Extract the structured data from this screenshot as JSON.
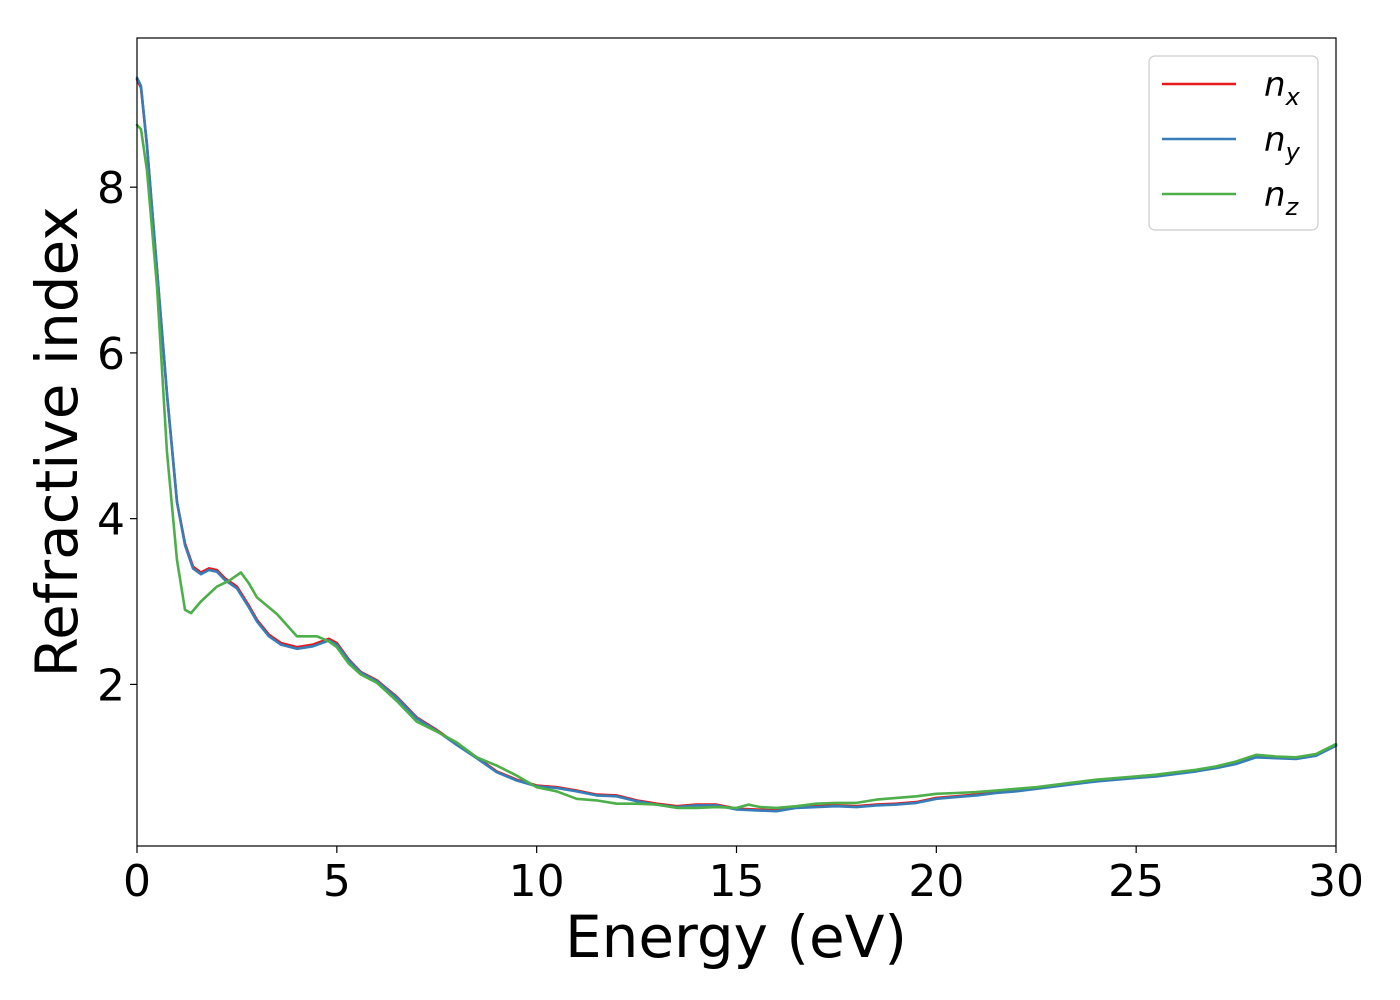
{
  "chart_data": {
    "type": "line",
    "title": "",
    "xlabel": "Energy (eV)",
    "ylabel": "Refractive index",
    "xlim": [
      0,
      30
    ],
    "ylim": [
      0.05,
      9.8
    ],
    "xticks": [
      0,
      5,
      10,
      15,
      20,
      25,
      30
    ],
    "yticks": [
      2,
      4,
      6,
      8
    ],
    "grid": false,
    "legend": {
      "position": "top-right"
    },
    "series": [
      {
        "name": "n_x",
        "label_base": "n",
        "label_sub": "x",
        "color": "#e41a1c",
        "points": [
          [
            0,
            9.3
          ],
          [
            0.1,
            9.2
          ],
          [
            0.25,
            8.5
          ],
          [
            0.5,
            7.0
          ],
          [
            0.75,
            5.5
          ],
          [
            1.0,
            4.2
          ],
          [
            1.2,
            3.7
          ],
          [
            1.4,
            3.42
          ],
          [
            1.6,
            3.35
          ],
          [
            1.8,
            3.4
          ],
          [
            2.0,
            3.38
          ],
          [
            2.2,
            3.28
          ],
          [
            2.5,
            3.18
          ],
          [
            2.8,
            2.95
          ],
          [
            3.0,
            2.78
          ],
          [
            3.3,
            2.6
          ],
          [
            3.6,
            2.5
          ],
          [
            4.0,
            2.45
          ],
          [
            4.4,
            2.48
          ],
          [
            4.8,
            2.55
          ],
          [
            5.0,
            2.5
          ],
          [
            5.3,
            2.3
          ],
          [
            5.6,
            2.15
          ],
          [
            6.0,
            2.05
          ],
          [
            6.5,
            1.85
          ],
          [
            7.0,
            1.6
          ],
          [
            7.5,
            1.45
          ],
          [
            8.0,
            1.28
          ],
          [
            8.5,
            1.12
          ],
          [
            9.0,
            0.95
          ],
          [
            9.5,
            0.85
          ],
          [
            10.0,
            0.78
          ],
          [
            10.5,
            0.76
          ],
          [
            11.0,
            0.72
          ],
          [
            11.5,
            0.67
          ],
          [
            12.0,
            0.66
          ],
          [
            12.5,
            0.6
          ],
          [
            13.0,
            0.56
          ],
          [
            13.5,
            0.53
          ],
          [
            14.0,
            0.55
          ],
          [
            14.5,
            0.55
          ],
          [
            15.0,
            0.5
          ],
          [
            15.5,
            0.49
          ],
          [
            16.0,
            0.48
          ],
          [
            16.5,
            0.52
          ],
          [
            17.0,
            0.53
          ],
          [
            17.5,
            0.54
          ],
          [
            18.0,
            0.53
          ],
          [
            18.5,
            0.55
          ],
          [
            19.0,
            0.56
          ],
          [
            19.5,
            0.58
          ],
          [
            20.0,
            0.63
          ],
          [
            20.5,
            0.65
          ],
          [
            21.0,
            0.67
          ],
          [
            21.5,
            0.7
          ],
          [
            22.0,
            0.72
          ],
          [
            22.5,
            0.75
          ],
          [
            23.0,
            0.78
          ],
          [
            23.5,
            0.81
          ],
          [
            24.0,
            0.84
          ],
          [
            24.5,
            0.86
          ],
          [
            25.0,
            0.88
          ],
          [
            25.5,
            0.9
          ],
          [
            26.0,
            0.93
          ],
          [
            26.5,
            0.96
          ],
          [
            27.0,
            1.0
          ],
          [
            27.5,
            1.05
          ],
          [
            28.0,
            1.13
          ],
          [
            28.5,
            1.12
          ],
          [
            29.0,
            1.11
          ],
          [
            29.5,
            1.15
          ],
          [
            30.0,
            1.27
          ]
        ]
      },
      {
        "name": "n_y",
        "label_base": "n",
        "label_sub": "y",
        "color": "#377eb8",
        "points": [
          [
            0,
            9.32
          ],
          [
            0.1,
            9.22
          ],
          [
            0.25,
            8.5
          ],
          [
            0.5,
            7.0
          ],
          [
            0.75,
            5.5
          ],
          [
            1.0,
            4.2
          ],
          [
            1.2,
            3.68
          ],
          [
            1.4,
            3.4
          ],
          [
            1.6,
            3.33
          ],
          [
            1.8,
            3.38
          ],
          [
            2.0,
            3.36
          ],
          [
            2.2,
            3.26
          ],
          [
            2.5,
            3.16
          ],
          [
            2.8,
            2.93
          ],
          [
            3.0,
            2.76
          ],
          [
            3.3,
            2.58
          ],
          [
            3.6,
            2.48
          ],
          [
            4.0,
            2.43
          ],
          [
            4.4,
            2.46
          ],
          [
            4.8,
            2.53
          ],
          [
            5.0,
            2.48
          ],
          [
            5.3,
            2.29
          ],
          [
            5.6,
            2.14
          ],
          [
            6.0,
            2.04
          ],
          [
            6.5,
            1.84
          ],
          [
            7.0,
            1.59
          ],
          [
            7.5,
            1.44
          ],
          [
            8.0,
            1.27
          ],
          [
            8.5,
            1.11
          ],
          [
            9.0,
            0.94
          ],
          [
            9.5,
            0.84
          ],
          [
            10.0,
            0.77
          ],
          [
            10.5,
            0.75
          ],
          [
            11.0,
            0.71
          ],
          [
            11.5,
            0.66
          ],
          [
            12.0,
            0.65
          ],
          [
            12.5,
            0.59
          ],
          [
            13.0,
            0.55
          ],
          [
            13.5,
            0.52
          ],
          [
            14.0,
            0.54
          ],
          [
            14.5,
            0.54
          ],
          [
            15.0,
            0.49
          ],
          [
            15.5,
            0.48
          ],
          [
            16.0,
            0.47
          ],
          [
            16.5,
            0.51
          ],
          [
            17.0,
            0.52
          ],
          [
            17.5,
            0.53
          ],
          [
            18.0,
            0.52
          ],
          [
            18.5,
            0.54
          ],
          [
            19.0,
            0.55
          ],
          [
            19.5,
            0.57
          ],
          [
            20.0,
            0.62
          ],
          [
            20.5,
            0.64
          ],
          [
            21.0,
            0.66
          ],
          [
            21.5,
            0.69
          ],
          [
            22.0,
            0.71
          ],
          [
            22.5,
            0.74
          ],
          [
            23.0,
            0.77
          ],
          [
            23.5,
            0.8
          ],
          [
            24.0,
            0.83
          ],
          [
            24.5,
            0.85
          ],
          [
            25.0,
            0.87
          ],
          [
            25.5,
            0.89
          ],
          [
            26.0,
            0.92
          ],
          [
            26.5,
            0.95
          ],
          [
            27.0,
            0.99
          ],
          [
            27.5,
            1.04
          ],
          [
            28.0,
            1.12
          ],
          [
            28.5,
            1.11
          ],
          [
            29.0,
            1.1
          ],
          [
            29.5,
            1.14
          ],
          [
            30.0,
            1.26
          ]
        ]
      },
      {
        "name": "n_z",
        "label_base": "n",
        "label_sub": "z",
        "color": "#4daf4a",
        "points": [
          [
            0,
            8.75
          ],
          [
            0.1,
            8.7
          ],
          [
            0.25,
            8.2
          ],
          [
            0.5,
            6.8
          ],
          [
            0.75,
            4.8
          ],
          [
            1.0,
            3.5
          ],
          [
            1.2,
            2.9
          ],
          [
            1.35,
            2.86
          ],
          [
            1.6,
            3.0
          ],
          [
            2.0,
            3.18
          ],
          [
            2.3,
            3.25
          ],
          [
            2.6,
            3.35
          ],
          [
            2.8,
            3.22
          ],
          [
            3.0,
            3.05
          ],
          [
            3.5,
            2.85
          ],
          [
            4.0,
            2.58
          ],
          [
            4.5,
            2.58
          ],
          [
            4.8,
            2.52
          ],
          [
            5.0,
            2.45
          ],
          [
            5.3,
            2.25
          ],
          [
            5.6,
            2.12
          ],
          [
            6.0,
            2.02
          ],
          [
            6.5,
            1.8
          ],
          [
            7.0,
            1.55
          ],
          [
            7.5,
            1.43
          ],
          [
            8.0,
            1.3
          ],
          [
            8.5,
            1.12
          ],
          [
            9.0,
            1.02
          ],
          [
            9.5,
            0.9
          ],
          [
            10.0,
            0.76
          ],
          [
            10.5,
            0.71
          ],
          [
            11.0,
            0.62
          ],
          [
            11.5,
            0.6
          ],
          [
            12.0,
            0.56
          ],
          [
            12.5,
            0.56
          ],
          [
            13.0,
            0.55
          ],
          [
            13.5,
            0.51
          ],
          [
            14.0,
            0.51
          ],
          [
            14.5,
            0.52
          ],
          [
            15.0,
            0.51
          ],
          [
            15.3,
            0.55
          ],
          [
            15.6,
            0.52
          ],
          [
            16.0,
            0.51
          ],
          [
            16.5,
            0.53
          ],
          [
            17.0,
            0.56
          ],
          [
            17.5,
            0.57
          ],
          [
            18.0,
            0.57
          ],
          [
            18.5,
            0.61
          ],
          [
            19.0,
            0.63
          ],
          [
            19.5,
            0.65
          ],
          [
            20.0,
            0.68
          ],
          [
            20.5,
            0.69
          ],
          [
            21.0,
            0.7
          ],
          [
            21.5,
            0.72
          ],
          [
            22.0,
            0.74
          ],
          [
            22.5,
            0.76
          ],
          [
            23.0,
            0.79
          ],
          [
            23.5,
            0.82
          ],
          [
            24.0,
            0.85
          ],
          [
            24.5,
            0.87
          ],
          [
            25.0,
            0.89
          ],
          [
            25.5,
            0.91
          ],
          [
            26.0,
            0.94
          ],
          [
            26.5,
            0.97
          ],
          [
            27.0,
            1.01
          ],
          [
            27.5,
            1.07
          ],
          [
            28.0,
            1.15
          ],
          [
            28.5,
            1.13
          ],
          [
            29.0,
            1.12
          ],
          [
            29.5,
            1.16
          ],
          [
            30.0,
            1.28
          ]
        ]
      }
    ]
  }
}
